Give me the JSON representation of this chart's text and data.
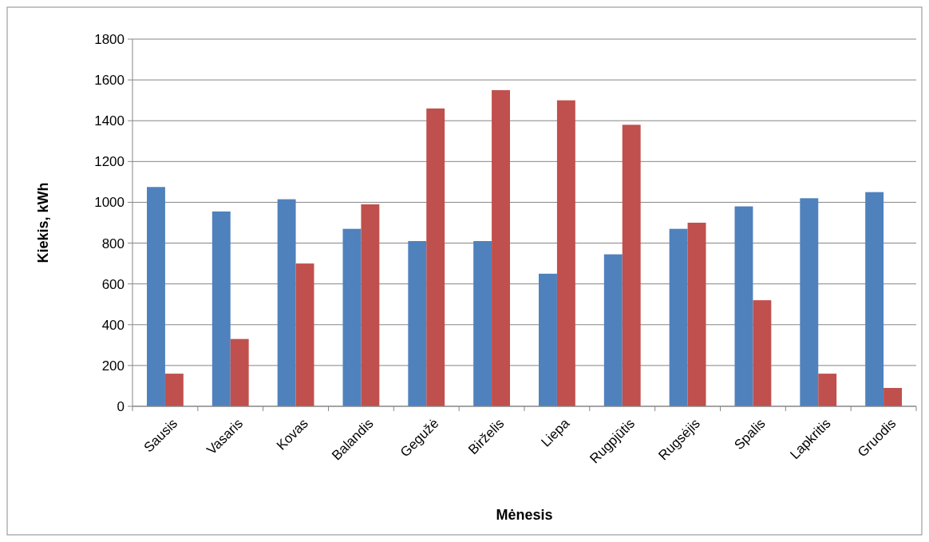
{
  "chart_data": {
    "type": "bar",
    "xlabel": "Mėnesis",
    "ylabel": "Kiekis, kWh",
    "categories": [
      "Sausis",
      "Vasaris",
      "Kovas",
      "Balandis",
      "Gegužė",
      "Birželis",
      "Liepa",
      "Rugpjūtis",
      "Rugsėjis",
      "Spalis",
      "Lapkritis",
      "Gruodis"
    ],
    "series": [
      {
        "color": "#4f81bd",
        "values": [
          1075,
          955,
          1015,
          870,
          810,
          810,
          650,
          745,
          870,
          980,
          1020,
          1050
        ]
      },
      {
        "color": "#c0504d",
        "values": [
          160,
          330,
          700,
          990,
          1460,
          1550,
          1500,
          1380,
          900,
          520,
          160,
          90
        ]
      }
    ],
    "ylim": [
      0,
      1800
    ],
    "yticks": [
      0,
      200,
      400,
      600,
      800,
      1000,
      1200,
      1400,
      1600,
      1800
    ],
    "grid": "y"
  }
}
